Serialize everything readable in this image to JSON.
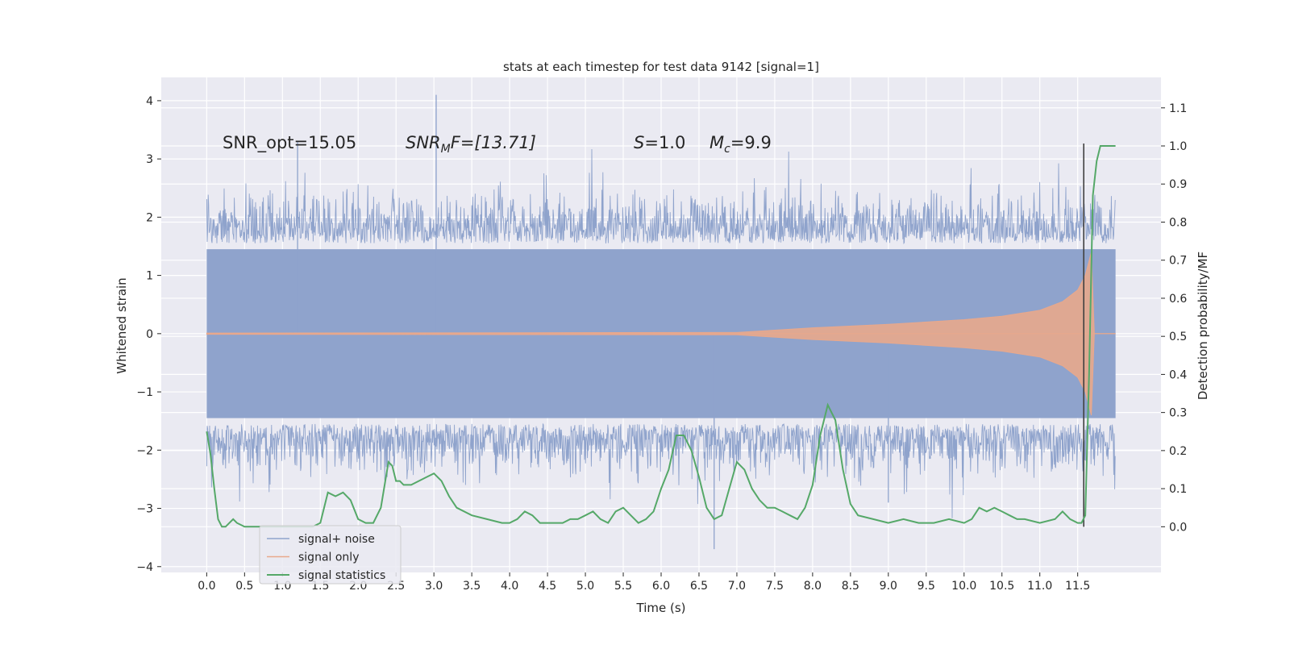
{
  "chart_data": {
    "type": "line",
    "title": "stats at each timestep for test data 9142 [signal=1]",
    "xlabel": "Time (s)",
    "ylabel_left": "Whitened strain",
    "ylabel_right": "Detection probability/MF",
    "xlim": [
      -0.6,
      12.6
    ],
    "ylim_left": [
      -4.1,
      4.4
    ],
    "ylim_right": [
      -0.12,
      1.18
    ],
    "x_ticks": [
      "0.0",
      "0.5",
      "1.0",
      "1.5",
      "2.0",
      "2.5",
      "3.0",
      "3.5",
      "4.0",
      "4.5",
      "5.0",
      "5.5",
      "6.0",
      "6.5",
      "7.0",
      "7.5",
      "8.0",
      "8.5",
      "9.0",
      "9.5",
      "10.0",
      "10.5",
      "11.0",
      "11.5"
    ],
    "y_ticks_left": [
      "4",
      "3",
      "2",
      "1",
      "0",
      "−1",
      "−2",
      "−3",
      "−4"
    ],
    "y_ticks_right": [
      "1.1",
      "1.0",
      "0.9",
      "0.8",
      "0.7",
      "0.6",
      "0.5",
      "0.4",
      "0.3",
      "0.2",
      "0.1",
      "0.0"
    ],
    "grid": true,
    "legend_position": "lower-left",
    "annotations": {
      "snr_opt": "SNR_opt=15.05",
      "snr_mf_main": "SNR",
      "snr_mf_sub": "M",
      "snr_mf_tail": "F=[13.71]",
      "s_main": "S",
      "s_tail": "=1.0",
      "mc_main": "M",
      "mc_sub": "c",
      "mc_tail": "=9.9"
    },
    "detection_marker_time": 11.58,
    "series": [
      {
        "name": "signal+ noise",
        "axis": "left",
        "color": "#8fa3cc",
        "time_range": [
          0.0,
          12.0
        ],
        "band_upper": [
          1.45,
          1.95
        ],
        "band_lower": [
          -1.45,
          -1.95
        ],
        "notable_peaks": [
          [
            3.03,
            4.1
          ],
          [
            1.2,
            3.3
          ],
          [
            6.7,
            -3.7
          ],
          [
            9.0,
            -2.9
          ]
        ]
      },
      {
        "name": "signal only",
        "axis": "left",
        "color": "#e8a88c",
        "envelope": [
          [
            0.0,
            0.01
          ],
          [
            7.0,
            0.02
          ],
          [
            8.0,
            0.1
          ],
          [
            9.0,
            0.16
          ],
          [
            10.0,
            0.24
          ],
          [
            10.5,
            0.3
          ],
          [
            11.0,
            0.4
          ],
          [
            11.3,
            0.55
          ],
          [
            11.5,
            0.75
          ],
          [
            11.6,
            1.0
          ],
          [
            11.68,
            1.4
          ],
          [
            11.72,
            0.0
          ],
          [
            12.0,
            0.0
          ]
        ]
      },
      {
        "name": "signal statistics",
        "axis": "right",
        "color": "#55a868",
        "x": [
          0.0,
          0.05,
          0.1,
          0.15,
          0.2,
          0.25,
          0.3,
          0.35,
          0.4,
          0.5,
          0.6,
          0.8,
          1.0,
          1.2,
          1.4,
          1.5,
          1.6,
          1.7,
          1.8,
          1.9,
          2.0,
          2.1,
          2.2,
          2.3,
          2.4,
          2.45,
          2.5,
          2.55,
          2.6,
          2.7,
          2.8,
          2.9,
          3.0,
          3.1,
          3.2,
          3.3,
          3.5,
          3.7,
          3.9,
          4.0,
          4.1,
          4.2,
          4.3,
          4.4,
          4.5,
          4.6,
          4.7,
          4.8,
          4.9,
          5.0,
          5.1,
          5.2,
          5.3,
          5.4,
          5.5,
          5.6,
          5.7,
          5.8,
          5.9,
          6.0,
          6.1,
          6.2,
          6.3,
          6.4,
          6.5,
          6.6,
          6.7,
          6.8,
          6.9,
          7.0,
          7.1,
          7.2,
          7.3,
          7.4,
          7.5,
          7.6,
          7.7,
          7.8,
          7.9,
          8.0,
          8.1,
          8.2,
          8.3,
          8.4,
          8.5,
          8.6,
          8.8,
          9.0,
          9.2,
          9.4,
          9.6,
          9.8,
          10.0,
          10.1,
          10.2,
          10.3,
          10.4,
          10.5,
          10.6,
          10.7,
          10.8,
          11.0,
          11.2,
          11.3,
          11.4,
          11.5,
          11.55,
          11.6,
          11.65,
          11.7,
          11.75,
          11.8,
          11.9,
          12.0
        ],
        "y": [
          0.25,
          0.19,
          0.1,
          0.02,
          0.0,
          0.0,
          0.01,
          0.02,
          0.01,
          0.0,
          0.0,
          0.0,
          0.0,
          0.0,
          0.0,
          0.01,
          0.09,
          0.08,
          0.09,
          0.07,
          0.02,
          0.01,
          0.01,
          0.05,
          0.17,
          0.16,
          0.12,
          0.12,
          0.11,
          0.11,
          0.12,
          0.13,
          0.14,
          0.12,
          0.08,
          0.05,
          0.03,
          0.02,
          0.01,
          0.01,
          0.02,
          0.04,
          0.03,
          0.01,
          0.01,
          0.01,
          0.01,
          0.02,
          0.02,
          0.03,
          0.04,
          0.02,
          0.01,
          0.04,
          0.05,
          0.03,
          0.01,
          0.02,
          0.04,
          0.1,
          0.15,
          0.24,
          0.24,
          0.2,
          0.13,
          0.05,
          0.02,
          0.03,
          0.1,
          0.17,
          0.15,
          0.1,
          0.07,
          0.05,
          0.05,
          0.04,
          0.03,
          0.02,
          0.05,
          0.11,
          0.24,
          0.32,
          0.28,
          0.15,
          0.06,
          0.03,
          0.02,
          0.01,
          0.02,
          0.01,
          0.01,
          0.02,
          0.01,
          0.02,
          0.05,
          0.04,
          0.05,
          0.04,
          0.03,
          0.02,
          0.02,
          0.01,
          0.02,
          0.04,
          0.02,
          0.01,
          0.01,
          0.03,
          0.4,
          0.87,
          0.96,
          1.0,
          1.0,
          1.0
        ]
      }
    ]
  }
}
